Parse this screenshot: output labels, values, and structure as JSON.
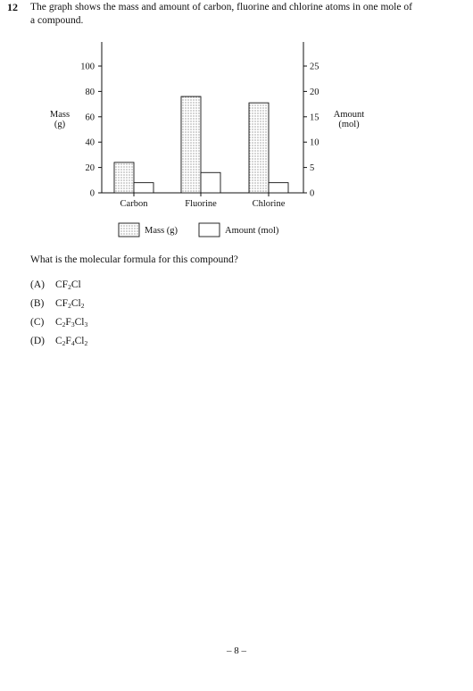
{
  "question": {
    "number": "12",
    "stem": "The graph shows the mass and amount of carbon, fluorine and chlorine atoms in one mole of a compound.",
    "prompt": "What is the molecular formula for this compound?",
    "options": [
      {
        "label": "(A)",
        "formula": [
          {
            "t": "CF"
          },
          {
            "s": "2"
          },
          {
            "t": "Cl"
          }
        ]
      },
      {
        "label": "(B)",
        "formula": [
          {
            "t": "CF"
          },
          {
            "s": "2"
          },
          {
            "t": "Cl"
          },
          {
            "s": "2"
          }
        ]
      },
      {
        "label": "(C)",
        "formula": [
          {
            "t": "C"
          },
          {
            "s": "2"
          },
          {
            "t": "F"
          },
          {
            "s": "3"
          },
          {
            "t": "Cl"
          },
          {
            "s": "3"
          }
        ]
      },
      {
        "label": "(D)",
        "formula": [
          {
            "t": "C"
          },
          {
            "s": "2"
          },
          {
            "t": "F"
          },
          {
            "s": "4"
          },
          {
            "t": "Cl"
          },
          {
            "s": "2"
          }
        ]
      }
    ]
  },
  "chart_data": {
    "type": "bar",
    "categories": [
      "Carbon",
      "Fluorine",
      "Chlorine"
    ],
    "series": [
      {
        "name": "Mass (g)",
        "values": [
          24,
          76,
          71
        ],
        "axis": "left",
        "fill": "dotted"
      },
      {
        "name": "Amount (mol)",
        "values": [
          2,
          4,
          2
        ],
        "axis": "right",
        "fill": "white"
      }
    ],
    "ylabel_left": [
      "Mass",
      "(g)"
    ],
    "ylabel_right": [
      "Amount",
      "(mol)"
    ],
    "ylim_left": [
      0,
      100
    ],
    "yticks_left": [
      0,
      20,
      40,
      60,
      80,
      100
    ],
    "ylim_right": [
      0,
      25
    ],
    "yticks_right": [
      0,
      5,
      10,
      15,
      20,
      25
    ],
    "legend_position": "bottom-center",
    "grid": false
  },
  "footer": {
    "page": "– 8 –"
  }
}
